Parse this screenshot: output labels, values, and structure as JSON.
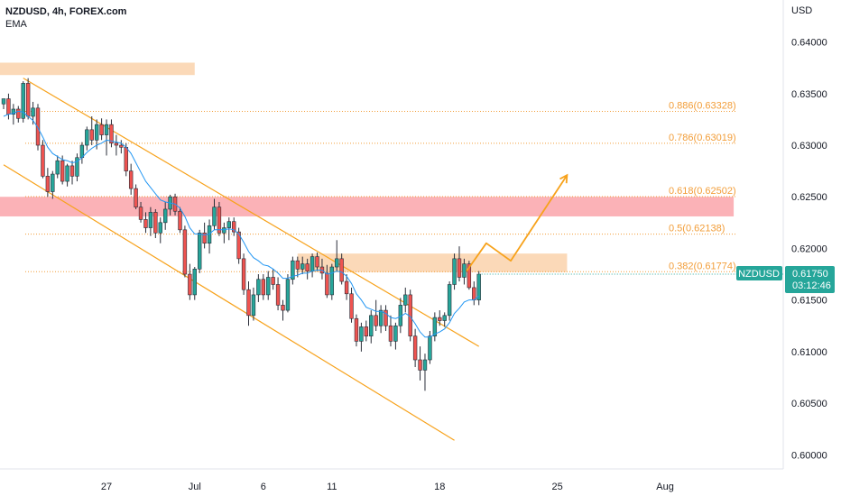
{
  "header": {
    "symbol_line": "NZDUSD, 4h, FOREX.com",
    "indicator": "EMA"
  },
  "colors": {
    "bull": "#26a69a",
    "bear": "#ef5350",
    "candle_body_dark": "#131722",
    "ema": "#2196f3",
    "channel": "#f7a21b",
    "zone_orange": "#fbd5b0",
    "zone_red": "#fbaaaf",
    "fib": "#f29d38",
    "price_tag": "#26a69a"
  },
  "chart_data": {
    "type": "candlestick",
    "symbol": "NZDUSD",
    "timeframe": "4h",
    "currency_label": "USD",
    "ylim": [
      0.5988,
      0.6425
    ],
    "y_ticks": [
      "0.64000",
      "0.63500",
      "0.63000",
      "0.62500",
      "0.62000",
      "0.61500",
      "0.61000",
      "0.60500",
      "0.60000"
    ],
    "x_ticks": [
      {
        "label": "27",
        "slot": 21
      },
      {
        "label": "Jul",
        "slot": 39
      },
      {
        "label": "6",
        "slot": 53
      },
      {
        "label": "11",
        "slot": 67
      },
      {
        "label": "18",
        "slot": 89
      },
      {
        "label": "25",
        "slot": 113
      },
      {
        "label": "Aug",
        "slot": 135
      }
    ],
    "last_price": {
      "label": "NZDUSD",
      "value": "0.61750",
      "countdown": "03:12:46"
    },
    "fib_levels": [
      {
        "label": "0.886(0.63328)",
        "value": 0.63328
      },
      {
        "label": "0.786(0.63019)",
        "value": 0.63019
      },
      {
        "label": "0.618(0.62502)",
        "value": 0.62502
      },
      {
        "label": "0.5(0.62138)",
        "value": 0.62138
      },
      {
        "label": "0.382(0.61774)",
        "value": 0.61774
      }
    ],
    "zones": [
      {
        "name": "resistance-top",
        "y": [
          0.6368,
          0.638
        ],
        "slot_range": [
          0,
          39
        ],
        "color": "zone_orange"
      },
      {
        "name": "supply-red",
        "y": [
          0.6231,
          0.625
        ],
        "slot_range": [
          0,
          149
        ],
        "color": "zone_red"
      },
      {
        "name": "breakout-zone",
        "y": [
          0.6177,
          0.6195
        ],
        "slot_range": [
          60,
          115
        ],
        "color": "zone_orange"
      }
    ],
    "channel": {
      "upper": [
        {
          "slot": 4,
          "y": 0.6365
        },
        {
          "slot": 97,
          "y": 0.6105
        }
      ],
      "lower": [
        {
          "slot": 0,
          "y": 0.6281
        },
        {
          "slot": 92,
          "y": 0.6014
        }
      ]
    },
    "projection": [
      {
        "slot": 94.5,
        "y": 0.6178
      },
      {
        "slot": 98.5,
        "y": 0.6205
      },
      {
        "slot": 103.5,
        "y": 0.6188
      },
      {
        "slot": 115,
        "y": 0.6271
      }
    ],
    "candles": [
      [
        0.634,
        0.6345,
        0.6335,
        0.6345
      ],
      [
        0.6345,
        0.635,
        0.6325,
        0.633
      ],
      [
        0.633,
        0.634,
        0.632,
        0.6335
      ],
      [
        0.6335,
        0.6338,
        0.6322,
        0.6326
      ],
      [
        0.6326,
        0.6362,
        0.6322,
        0.636
      ],
      [
        0.636,
        0.6365,
        0.6325,
        0.6328
      ],
      [
        0.6328,
        0.6342,
        0.632,
        0.6336
      ],
      [
        0.6336,
        0.634,
        0.6295,
        0.63
      ],
      [
        0.63,
        0.6305,
        0.6268,
        0.627
      ],
      [
        0.627,
        0.6278,
        0.625,
        0.6255
      ],
      [
        0.6255,
        0.6275,
        0.6248,
        0.6272
      ],
      [
        0.6272,
        0.629,
        0.6268,
        0.6285
      ],
      [
        0.6285,
        0.629,
        0.6262,
        0.6265
      ],
      [
        0.6265,
        0.6282,
        0.626,
        0.628
      ],
      [
        0.628,
        0.6285,
        0.6262,
        0.627
      ],
      [
        0.627,
        0.6292,
        0.6265,
        0.6288
      ],
      [
        0.6288,
        0.6303,
        0.6282,
        0.63
      ],
      [
        0.63,
        0.6318,
        0.6295,
        0.6315
      ],
      [
        0.6315,
        0.6328,
        0.63,
        0.6305
      ],
      [
        0.6305,
        0.6325,
        0.6296,
        0.632
      ],
      [
        0.632,
        0.6326,
        0.6305,
        0.631
      ],
      [
        0.631,
        0.6325,
        0.629,
        0.632
      ],
      [
        0.632,
        0.6325,
        0.6298,
        0.6302
      ],
      [
        0.6302,
        0.631,
        0.629,
        0.63
      ],
      [
        0.63,
        0.6305,
        0.6292,
        0.6298
      ],
      [
        0.6298,
        0.6302,
        0.627,
        0.6275
      ],
      [
        0.6275,
        0.6282,
        0.6252,
        0.6258
      ],
      [
        0.6258,
        0.6262,
        0.6238,
        0.624
      ],
      [
        0.624,
        0.6245,
        0.6225,
        0.6228
      ],
      [
        0.6228,
        0.6235,
        0.6215,
        0.622
      ],
      [
        0.622,
        0.624,
        0.6212,
        0.6235
      ],
      [
        0.6235,
        0.6238,
        0.621,
        0.6215
      ],
      [
        0.6215,
        0.623,
        0.6205,
        0.6225
      ],
      [
        0.6225,
        0.6245,
        0.6218,
        0.6238
      ],
      [
        0.6238,
        0.6252,
        0.6232,
        0.625
      ],
      [
        0.625,
        0.6253,
        0.6232,
        0.6236
      ],
      [
        0.6236,
        0.624,
        0.6215,
        0.6218
      ],
      [
        0.6218,
        0.6222,
        0.6172,
        0.6175
      ],
      [
        0.6175,
        0.6185,
        0.615,
        0.6155
      ],
      [
        0.6155,
        0.6182,
        0.615,
        0.618
      ],
      [
        0.618,
        0.6218,
        0.6176,
        0.6215
      ],
      [
        0.6215,
        0.6225,
        0.62,
        0.6205
      ],
      [
        0.6205,
        0.6228,
        0.6195,
        0.6222
      ],
      [
        0.6222,
        0.6248,
        0.6218,
        0.624
      ],
      [
        0.624,
        0.6245,
        0.6212,
        0.6215
      ],
      [
        0.6215,
        0.6225,
        0.6205,
        0.622
      ],
      [
        0.622,
        0.623,
        0.6208,
        0.6226
      ],
      [
        0.6226,
        0.623,
        0.6212,
        0.6216
      ],
      [
        0.6216,
        0.622,
        0.6185,
        0.619
      ],
      [
        0.619,
        0.6195,
        0.6155,
        0.616
      ],
      [
        0.616,
        0.6168,
        0.6125,
        0.6135
      ],
      [
        0.6135,
        0.6162,
        0.613,
        0.6155
      ],
      [
        0.6155,
        0.6175,
        0.6148,
        0.617
      ],
      [
        0.617,
        0.6175,
        0.615,
        0.6155
      ],
      [
        0.6155,
        0.6178,
        0.615,
        0.6172
      ],
      [
        0.6172,
        0.618,
        0.616,
        0.6165
      ],
      [
        0.6165,
        0.6172,
        0.614,
        0.6145
      ],
      [
        0.6145,
        0.615,
        0.613,
        0.614
      ],
      [
        0.614,
        0.6175,
        0.6138,
        0.617
      ],
      [
        0.617,
        0.6192,
        0.6165,
        0.6188
      ],
      [
        0.6188,
        0.6192,
        0.6172,
        0.618
      ],
      [
        0.618,
        0.6192,
        0.6175,
        0.6185
      ],
      [
        0.6185,
        0.619,
        0.617,
        0.6178
      ],
      [
        0.6178,
        0.6195,
        0.6172,
        0.6192
      ],
      [
        0.6192,
        0.6196,
        0.6178,
        0.6182
      ],
      [
        0.6182,
        0.619,
        0.617,
        0.6176
      ],
      [
        0.6176,
        0.6184,
        0.6152,
        0.6155
      ],
      [
        0.6155,
        0.6185,
        0.615,
        0.6182
      ],
      [
        0.6182,
        0.6208,
        0.6178,
        0.619
      ],
      [
        0.619,
        0.6195,
        0.6165,
        0.6168
      ],
      [
        0.6168,
        0.6175,
        0.615,
        0.6156
      ],
      [
        0.6156,
        0.6162,
        0.6128,
        0.6132
      ],
      [
        0.6132,
        0.6136,
        0.6105,
        0.611
      ],
      [
        0.611,
        0.6128,
        0.61,
        0.6124
      ],
      [
        0.6124,
        0.613,
        0.611,
        0.6115
      ],
      [
        0.6115,
        0.614,
        0.6108,
        0.6135
      ],
      [
        0.6135,
        0.615,
        0.612,
        0.6125
      ],
      [
        0.6125,
        0.6145,
        0.6118,
        0.614
      ],
      [
        0.614,
        0.6145,
        0.612,
        0.6125
      ],
      [
        0.6125,
        0.6135,
        0.6105,
        0.611
      ],
      [
        0.611,
        0.6128,
        0.6102,
        0.6125
      ],
      [
        0.6125,
        0.6152,
        0.6118,
        0.6145
      ],
      [
        0.6145,
        0.6162,
        0.6138,
        0.6155
      ],
      [
        0.6155,
        0.616,
        0.611,
        0.6115
      ],
      [
        0.6115,
        0.6122,
        0.6085,
        0.6092
      ],
      [
        0.6092,
        0.6105,
        0.6072,
        0.6082
      ],
      [
        0.6082,
        0.6098,
        0.6062,
        0.6092
      ],
      [
        0.6092,
        0.612,
        0.6088,
        0.6115
      ],
      [
        0.6115,
        0.6138,
        0.611,
        0.6133
      ],
      [
        0.6133,
        0.614,
        0.6125,
        0.613
      ],
      [
        0.613,
        0.6138,
        0.6124,
        0.6135
      ],
      [
        0.6135,
        0.6168,
        0.613,
        0.6165
      ],
      [
        0.6165,
        0.6195,
        0.616,
        0.619
      ],
      [
        0.619,
        0.6202,
        0.6168,
        0.6172
      ],
      [
        0.6172,
        0.619,
        0.6165,
        0.6185
      ],
      [
        0.6185,
        0.6188,
        0.616,
        0.6162
      ],
      [
        0.6162,
        0.6168,
        0.6145,
        0.615
      ],
      [
        0.615,
        0.6178,
        0.6145,
        0.6175
      ]
    ],
    "ema": [
      0.6328,
      0.633,
      0.6331,
      0.6333,
      0.6332,
      0.6328,
      0.6324,
      0.6317,
      0.6308,
      0.6298,
      0.6292,
      0.6289,
      0.6286,
      0.6285,
      0.6283,
      0.6284,
      0.6288,
      0.6293,
      0.6297,
      0.63,
      0.6302,
      0.6305,
      0.6304,
      0.6303,
      0.6302,
      0.6298,
      0.6292,
      0.6283,
      0.6274,
      0.6265,
      0.6259,
      0.6253,
      0.6247,
      0.6245,
      0.6244,
      0.6243,
      0.6239,
      0.6231,
      0.622,
      0.6214,
      0.6214,
      0.6213,
      0.6214,
      0.6218,
      0.6218,
      0.6218,
      0.6219,
      0.6218,
      0.6214,
      0.6206,
      0.6197,
      0.6191,
      0.6188,
      0.6184,
      0.6183,
      0.618,
      0.6176,
      0.6171,
      0.6171,
      0.6173,
      0.6174,
      0.6176,
      0.6176,
      0.6178,
      0.6179,
      0.6179,
      0.6175,
      0.6176,
      0.6178,
      0.6177,
      0.6173,
      0.6166,
      0.6156,
      0.615,
      0.6143,
      0.6141,
      0.6139,
      0.6139,
      0.6137,
      0.6133,
      0.6132,
      0.6134,
      0.6137,
      0.6134,
      0.6127,
      0.6119,
      0.6114,
      0.6114,
      0.6117,
      0.6119,
      0.6122,
      0.6128,
      0.6137,
      0.6142,
      0.6148,
      0.615,
      0.615,
      0.6154
    ]
  }
}
